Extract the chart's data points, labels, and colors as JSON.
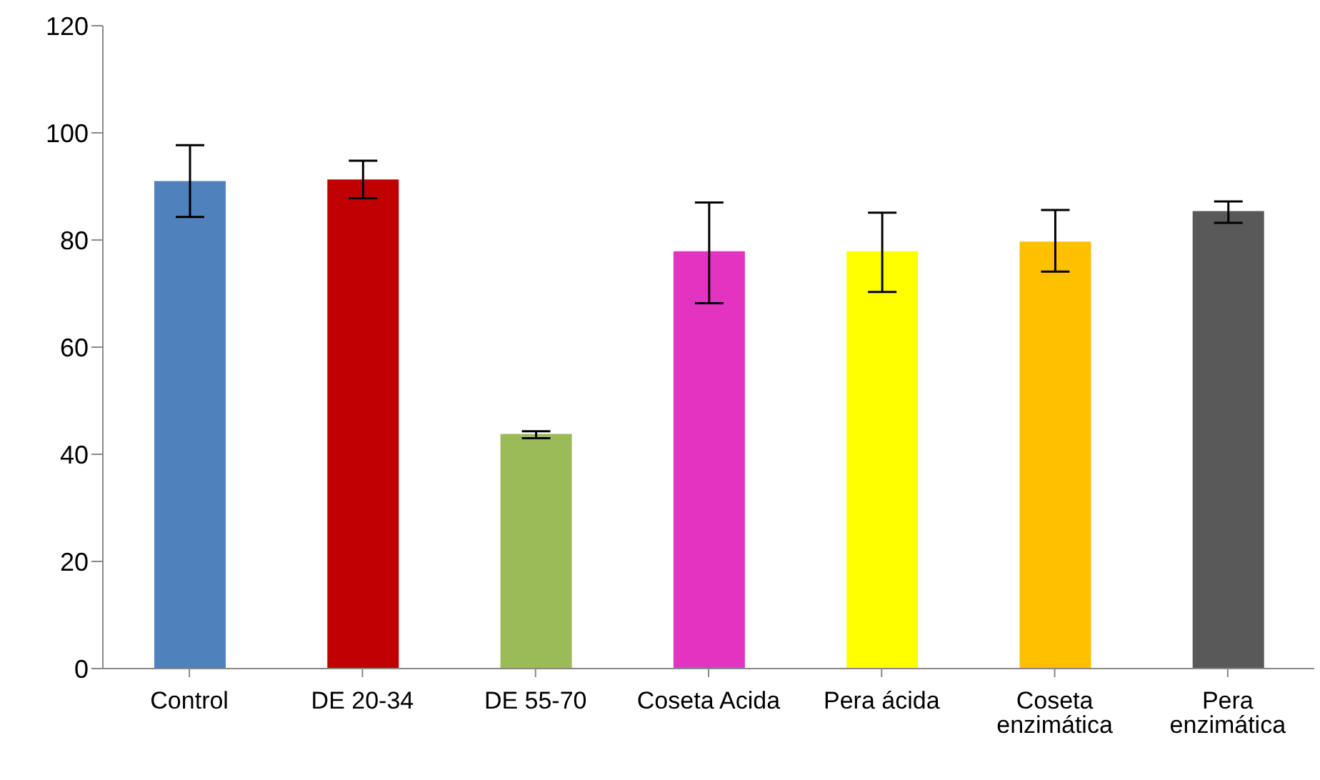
{
  "chart_data": {
    "type": "bar",
    "categories": [
      "Control",
      "DE 20-34",
      "DE 55-70",
      "Coseta Acida",
      "Pera ácida",
      "Coseta enzimática",
      "Pera enzimática"
    ],
    "values": [
      91.0,
      91.3,
      43.8,
      77.9,
      77.9,
      79.7,
      85.4
    ],
    "colors": [
      "#4f81bd",
      "#c00000",
      "#9bbb59",
      "#e234c0",
      "#ffff00",
      "#ffc000",
      "#595959"
    ],
    "errors": [
      [
        84.3,
        97.7
      ],
      [
        87.8,
        94.8
      ],
      [
        43.0,
        44.3
      ],
      [
        68.2,
        87.0
      ],
      [
        70.3,
        85.1
      ],
      [
        74.1,
        85.6
      ],
      [
        83.2,
        87.2
      ]
    ],
    "ylim": [
      0,
      120
    ],
    "yticks": [
      0,
      20,
      40,
      60,
      80,
      100,
      120
    ],
    "grid": false,
    "legend": false
  }
}
